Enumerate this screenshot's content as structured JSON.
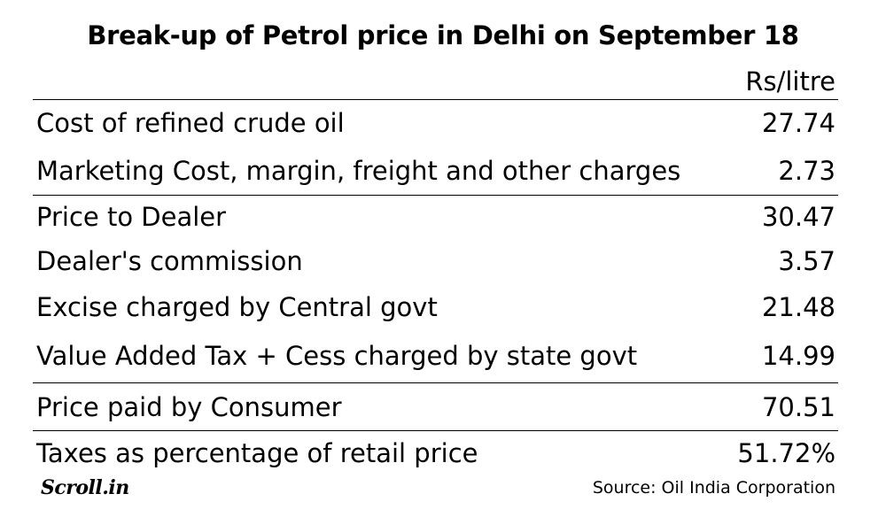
{
  "title": "Break-up of Petrol price in Delhi on September 18",
  "unit_label": "Rs/litre",
  "rows": [
    {
      "label": "Cost of refined crude oil",
      "value": "27.74"
    },
    {
      "label": "Marketing Cost, margin, freight and other charges",
      "value": "2.73"
    },
    {
      "label": "Price to Dealer",
      "value": "30.47"
    },
    {
      "label": "Dealer's commission",
      "value": "3.57"
    },
    {
      "label": "Excise charged by Central govt",
      "value": "21.48"
    },
    {
      "label": "Value Added Tax + Cess charged by state govt",
      "value": "14.99"
    },
    {
      "label": "Price paid by Consumer",
      "value": "70.51"
    },
    {
      "label": "Taxes as percentage of retail price",
      "value": "51.72%"
    }
  ],
  "logo_text": "Scroll.in",
  "source": "Source: Oil India Corporation"
}
